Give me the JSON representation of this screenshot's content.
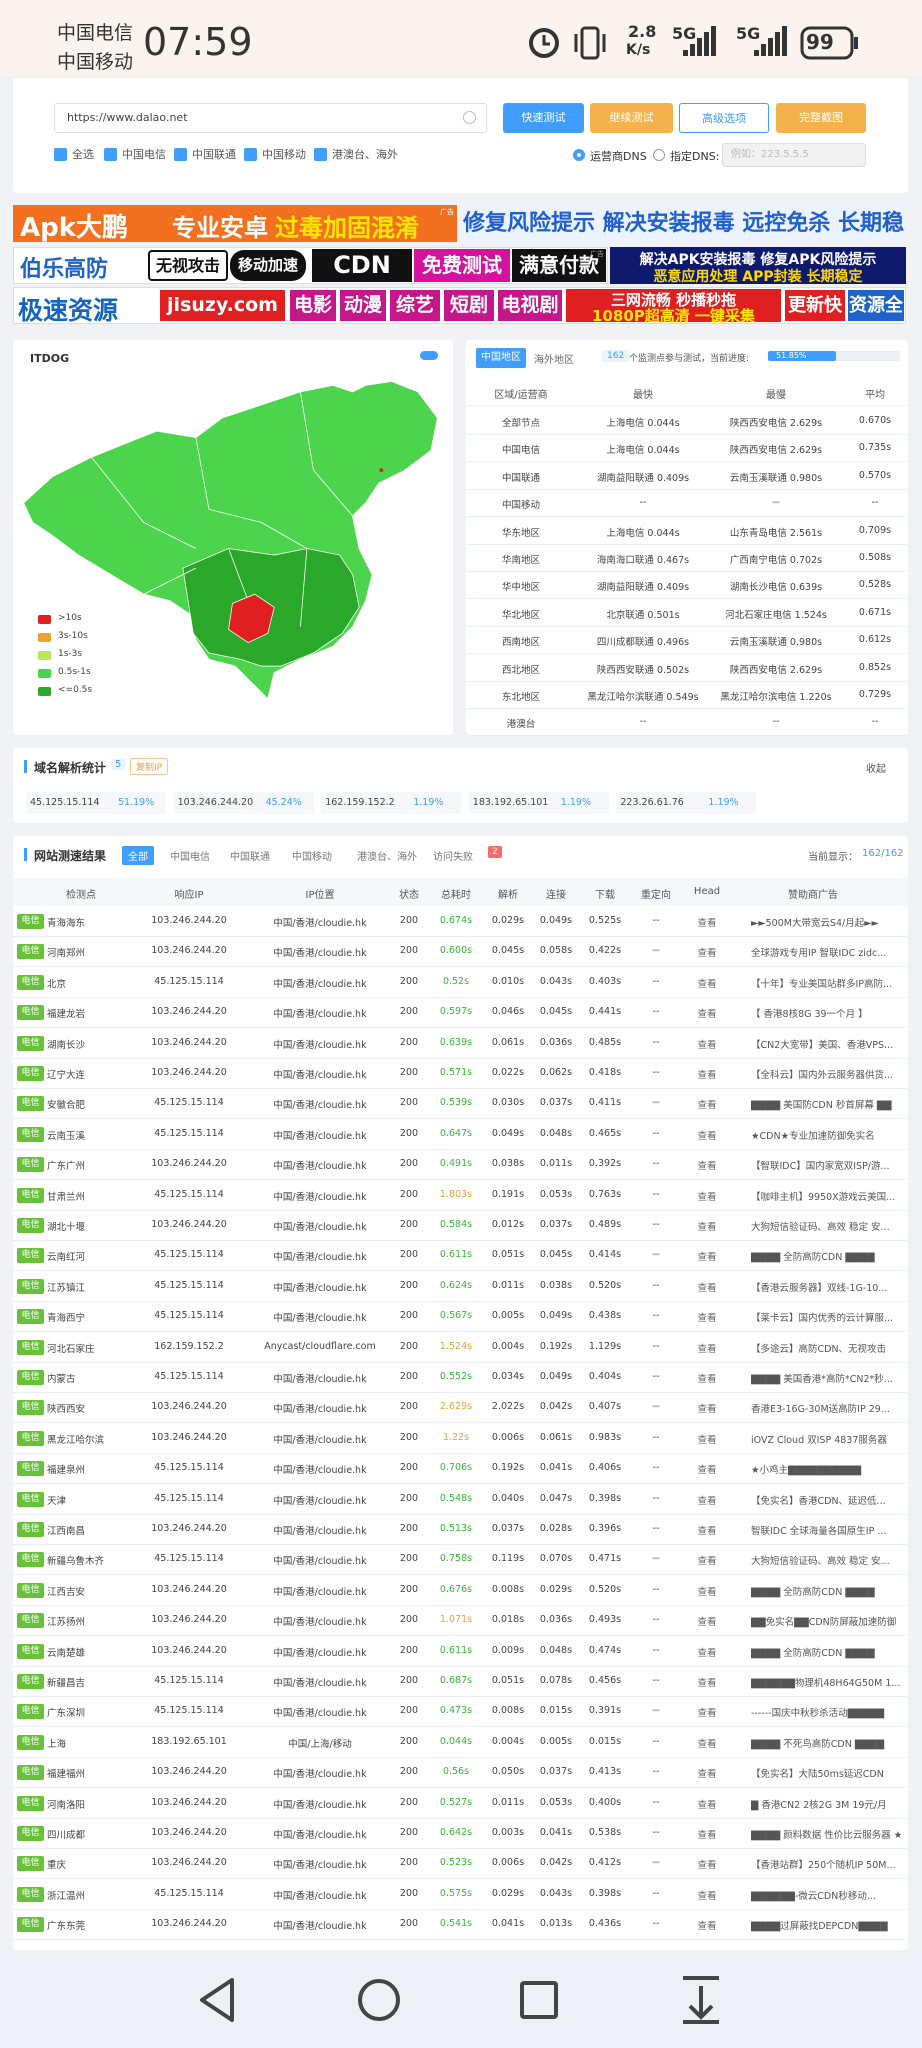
{
  "status_bar": {
    "carrier1": "中国电信",
    "carrier2": "中国移动",
    "time": "07:59",
    "speed": "2.8",
    "speed_unit": "K/s",
    "net1": "5G",
    "net2": "5G",
    "battery": "99"
  },
  "toolbar": {
    "url": "https://www.dalao.net",
    "buttons": [
      "快速测试",
      "继续测试",
      "高级选项",
      "完整截图"
    ],
    "checkboxes": [
      "全选",
      "中国电信",
      "中国联通",
      "中国移动",
      "港澳台、海外"
    ],
    "dns_options": [
      "运营商DNS",
      "指定DNS:"
    ],
    "dns_placeholder": "例如：223.5.5.5"
  },
  "ads": {
    "ad_mark": "广告",
    "r1": [
      "Apk大鹏",
      "专业安卓",
      "过毒加固混淆",
      "修复风险提示 解决安装报毒 远控免杀 长期稳定"
    ],
    "r2": [
      "伯乐高防",
      "无视攻击",
      "移动加速",
      "CDN",
      "免费测试",
      "满意付款",
      "解决APK安装报毒 修复APK风险提示",
      "恶意应用处理 APP封装 长期稳定"
    ],
    "r3": [
      "极速资源",
      "jisuzy.com",
      "电影",
      "动漫",
      "综艺",
      "短剧",
      "电视剧",
      "三网流畅 秒播秒拖",
      "1080P超高清 一键采集",
      "更新快",
      "资源全"
    ]
  },
  "map": {
    "logo": "ITDOG",
    "legend": [
      ">10s",
      "3s-10s",
      "1s-3s",
      "0.5s-1s",
      "<=0.5s"
    ]
  },
  "region_stats": {
    "tabs": [
      "中国地区",
      "海外地区"
    ],
    "monitor_count": "162",
    "progress_text": "个监测点参与测试，当前进度:",
    "progress": {
      "value": 51.85,
      "label": "51.85%"
    },
    "headers": [
      "区域/运营商",
      "最快",
      "最慢",
      "平均"
    ],
    "rows": [
      [
        "全部节点",
        "上海电信 0.044s",
        "陕西西安电信 2.629s",
        "0.670s"
      ],
      [
        "中国电信",
        "上海电信 0.044s",
        "陕西西安电信 2.629s",
        "0.735s"
      ],
      [
        "中国联通",
        "湖南益阳联通 0.409s",
        "云南玉溪联通 0.980s",
        "0.570s"
      ],
      [
        "中国移动",
        "--",
        "--",
        "--"
      ],
      [
        "华东地区",
        "上海电信 0.044s",
        "山东青岛电信 2.561s",
        "0.709s"
      ],
      [
        "华南地区",
        "海南海口联通 0.467s",
        "广西南宁电信 0.702s",
        "0.508s"
      ],
      [
        "华中地区",
        "湖南益阳联通 0.409s",
        "湖南长沙电信 0.639s",
        "0.528s"
      ],
      [
        "华北地区",
        "北京联通 0.501s",
        "河北石家庄电信 1.524s",
        "0.671s"
      ],
      [
        "西南地区",
        "四川成都联通 0.496s",
        "云南玉溪联通 0.980s",
        "0.612s"
      ],
      [
        "西北地区",
        "陕西西安联通 0.502s",
        "陕西西安电信 2.629s",
        "0.852s"
      ],
      [
        "东北地区",
        "黑龙江哈尔滨联通 0.549s",
        "黑龙江哈尔滨电信 1.220s",
        "0.729s"
      ],
      [
        "港澳台",
        "--",
        "--",
        "--"
      ]
    ]
  },
  "domain_stats": {
    "title": "域名解析统计",
    "count": "5",
    "copy": "复制IP",
    "collapse": "收起",
    "items": [
      [
        "45.125.15.114",
        "51.19%"
      ],
      [
        "103.246.244.20",
        "45.24%"
      ],
      [
        "162.159.152.2",
        "1.19%"
      ],
      [
        "183.192.65.101",
        "1.19%"
      ],
      [
        "223.26.61.76",
        "1.19%"
      ]
    ]
  },
  "results": {
    "title": "网站测速结果",
    "tabs": [
      "全部",
      "中国电信",
      "中国联通",
      "中国移动",
      "港澳台、海外",
      "访问失败"
    ],
    "fail_count": "2",
    "display_label": "当前显示：",
    "display_value": "162/162",
    "headers": [
      "检测点",
      "响应IP",
      "IP位置",
      "状态",
      "总耗时",
      "解析",
      "连接",
      "下载",
      "重定向",
      "Head",
      "赞助商广告"
    ],
    "rows": [
      [
        "电信",
        "青海海东",
        "103.246.244.20",
        "中国/香港/cloudie.hk",
        "200",
        "0.674s",
        "0.029s",
        "0.049s",
        "0.525s",
        "--",
        "查看",
        "►►500M大带宽云S4/月起►►"
      ],
      [
        "电信",
        "河南郑州",
        "103.246.244.20",
        "中国/香港/cloudie.hk",
        "200",
        "0.600s",
        "0.045s",
        "0.058s",
        "0.422s",
        "--",
        "查看",
        "全球游戏专用IP 智联IDC zidc..."
      ],
      [
        "电信",
        "北京",
        "45.125.15.114",
        "中国/香港/cloudie.hk",
        "200",
        "0.52s",
        "0.010s",
        "0.043s",
        "0.403s",
        "--",
        "查看",
        "【十年】专业美国站群多IP高防..."
      ],
      [
        "电信",
        "福建龙岩",
        "103.246.244.20",
        "中国/香港/cloudie.hk",
        "200",
        "0.597s",
        "0.046s",
        "0.045s",
        "0.441s",
        "--",
        "查看",
        "【 香港8核8G 39一个月 】"
      ],
      [
        "电信",
        "湖南长沙",
        "103.246.244.20",
        "中国/香港/cloudie.hk",
        "200",
        "0.639s",
        "0.061s",
        "0.036s",
        "0.485s",
        "--",
        "查看",
        "【CN2大宽带】美国、香港VPS..."
      ],
      [
        "电信",
        "辽宁大连",
        "103.246.244.20",
        "中国/香港/cloudie.hk",
        "200",
        "0.571s",
        "0.022s",
        "0.062s",
        "0.418s",
        "--",
        "查看",
        "【全科云】国内外云服务器供货..."
      ],
      [
        "电信",
        "安徽合肥",
        "45.125.15.114",
        "中国/香港/cloudie.hk",
        "200",
        "0.539s",
        "0.030s",
        "0.037s",
        "0.411s",
        "--",
        "查看",
        "▇▇▇▇ 美国防CDN 秒首屏幕 ▇▇"
      ],
      [
        "电信",
        "云南玉溪",
        "45.125.15.114",
        "中国/香港/cloudie.hk",
        "200",
        "0.647s",
        "0.049s",
        "0.048s",
        "0.465s",
        "--",
        "查看",
        "★CDN★专业加速防御免实名"
      ],
      [
        "电信",
        "广东广州",
        "103.246.244.20",
        "中国/香港/cloudie.hk",
        "200",
        "0.491s",
        "0.038s",
        "0.011s",
        "0.392s",
        "--",
        "查看",
        "【智联IDC】国内家宽双ISP/游..."
      ],
      [
        "电信",
        "甘肃兰州",
        "45.125.15.114",
        "中国/香港/cloudie.hk",
        "200",
        "1.803s",
        "0.191s",
        "0.053s",
        "0.763s",
        "--",
        "查看",
        "【咖啡主机】9950X游戏云美国..."
      ],
      [
        "电信",
        "湖北十堰",
        "103.246.244.20",
        "中国/香港/cloudie.hk",
        "200",
        "0.584s",
        "0.012s",
        "0.037s",
        "0.489s",
        "--",
        "查看",
        "大狗短信验证码、高效 稳定 安..."
      ],
      [
        "电信",
        "云南红河",
        "45.125.15.114",
        "中国/香港/cloudie.hk",
        "200",
        "0.611s",
        "0.051s",
        "0.045s",
        "0.414s",
        "--",
        "查看",
        "▇▇▇▇ 全防高防CDN ▇▇▇▇"
      ],
      [
        "电信",
        "江苏镇江",
        "45.125.15.114",
        "中国/香港/cloudie.hk",
        "200",
        "0.624s",
        "0.011s",
        "0.038s",
        "0.520s",
        "--",
        "查看",
        "【香港云服务器】双线-1G-10..."
      ],
      [
        "电信",
        "青海西宁",
        "45.125.15.114",
        "中国/香港/cloudie.hk",
        "200",
        "0.567s",
        "0.005s",
        "0.049s",
        "0.438s",
        "--",
        "查看",
        "【莱卡云】国内优秀的云计算服..."
      ],
      [
        "电信",
        "河北石家庄",
        "162.159.152.2",
        "Anycast/cloudflare.com",
        "200",
        "1.524s",
        "0.004s",
        "0.192s",
        "1.129s",
        "--",
        "查看",
        "【多途云】高防CDN、无视攻击"
      ],
      [
        "电信",
        "内蒙古",
        "45.125.15.114",
        "中国/香港/cloudie.hk",
        "200",
        "0.552s",
        "0.034s",
        "0.049s",
        "0.404s",
        "--",
        "查看",
        "▇▇▇▇ 美国香港*高防*CN2*秒..."
      ],
      [
        "电信",
        "陕西西安",
        "103.246.244.20",
        "中国/香港/cloudie.hk",
        "200",
        "2.629s",
        "2.022s",
        "0.042s",
        "0.407s",
        "--",
        "查看",
        "香港E3-16G-30M送高防IP 29..."
      ],
      [
        "电信",
        "黑龙江哈尔滨",
        "103.246.244.20",
        "中国/香港/cloudie.hk",
        "200",
        "1.22s",
        "0.006s",
        "0.061s",
        "0.983s",
        "--",
        "查看",
        "iOVZ Cloud 双ISP 4837服务器"
      ],
      [
        "电信",
        "福建泉州",
        "45.125.15.114",
        "中国/香港/cloudie.hk",
        "200",
        "0.706s",
        "0.192s",
        "0.041s",
        "0.406s",
        "--",
        "查看",
        "★小鸡主▇▇▇▇▇▇▇▇▇▇"
      ],
      [
        "电信",
        "天津",
        "45.125.15.114",
        "中国/香港/cloudie.hk",
        "200",
        "0.548s",
        "0.040s",
        "0.047s",
        "0.398s",
        "--",
        "查看",
        "【免实名】香港CDN、延迟低..."
      ],
      [
        "电信",
        "江西南昌",
        "103.246.244.20",
        "中国/香港/cloudie.hk",
        "200",
        "0.513s",
        "0.037s",
        "0.028s",
        "0.396s",
        "--",
        "查看",
        "智联IDC 全球海量各国原生IP ..."
      ],
      [
        "电信",
        "新疆乌鲁木齐",
        "45.125.15.114",
        "中国/香港/cloudie.hk",
        "200",
        "0.758s",
        "0.119s",
        "0.070s",
        "0.471s",
        "--",
        "查看",
        "大狗短信验证码、高效 稳定 安..."
      ],
      [
        "电信",
        "江西吉安",
        "103.246.244.20",
        "中国/香港/cloudie.hk",
        "200",
        "0.676s",
        "0.008s",
        "0.029s",
        "0.520s",
        "--",
        "查看",
        "▇▇▇▇ 全防高防CDN ▇▇▇▇"
      ],
      [
        "电信",
        "江苏扬州",
        "103.246.244.20",
        "中国/香港/cloudie.hk",
        "200",
        "1.071s",
        "0.018s",
        "0.036s",
        "0.493s",
        "--",
        "查看",
        "▇▇免实名▇▇CDN防屏蔽加速防御"
      ],
      [
        "电信",
        "云南楚雄",
        "103.246.244.20",
        "中国/香港/cloudie.hk",
        "200",
        "0.611s",
        "0.009s",
        "0.048s",
        "0.474s",
        "--",
        "查看",
        "▇▇▇▇ 全防高防CDN ▇▇▇▇"
      ],
      [
        "电信",
        "新疆昌吉",
        "45.125.15.114",
        "中国/香港/cloudie.hk",
        "200",
        "0.687s",
        "0.051s",
        "0.078s",
        "0.456s",
        "--",
        "查看",
        "▇▇▇▇▇▇物理机48H64G50M 1..."
      ],
      [
        "电信",
        "广东深圳",
        "45.125.15.114",
        "中国/香港/cloudie.hk",
        "200",
        "0.473s",
        "0.008s",
        "0.015s",
        "0.391s",
        "--",
        "查看",
        "------国庆中秋秒杀活动▇▇▇▇▇"
      ],
      [
        "电信",
        "上海",
        "183.192.65.101",
        "中国/上海/移动",
        "200",
        "0.044s",
        "0.004s",
        "0.005s",
        "0.015s",
        "--",
        "查看",
        "▇▇▇▇ 不死鸟高防CDN ▇▇▇▇"
      ],
      [
        "电信",
        "福建福州",
        "103.246.244.20",
        "中国/香港/cloudie.hk",
        "200",
        "0.56s",
        "0.050s",
        "0.037s",
        "0.413s",
        "--",
        "查看",
        "【免实名】大陆50ms延迟CDN"
      ],
      [
        "电信",
        "河南洛阳",
        "103.246.244.20",
        "中国/香港/cloudie.hk",
        "200",
        "0.527s",
        "0.011s",
        "0.053s",
        "0.400s",
        "--",
        "查看",
        "▇ 香港CN2 2核2G 3M 19元/月"
      ],
      [
        "电信",
        "四川成都",
        "103.246.244.20",
        "中国/香港/cloudie.hk",
        "200",
        "0.642s",
        "0.003s",
        "0.041s",
        "0.538s",
        "--",
        "查看",
        "▇▇▇▇ 颜料数据 性价比云服务器 ★"
      ],
      [
        "电信",
        "重庆",
        "103.246.244.20",
        "中国/香港/cloudie.hk",
        "200",
        "0.523s",
        "0.006s",
        "0.042s",
        "0.412s",
        "--",
        "查看",
        "【香港站群】250个随机IP 50M..."
      ],
      [
        "电信",
        "浙江温州",
        "45.125.15.114",
        "中国/香港/cloudie.hk",
        "200",
        "0.575s",
        "0.029s",
        "0.043s",
        "0.398s",
        "--",
        "查看",
        "▇▇▇▇▇▇-微云CDN秒移动..."
      ],
      [
        "电信",
        "广东东莞",
        "103.246.244.20",
        "中国/香港/cloudie.hk",
        "200",
        "0.541s",
        "0.041s",
        "0.013s",
        "0.436s",
        "--",
        "查看",
        "▇▇▇▇过屏蔽找DEPCDN▇▇▇▇"
      ]
    ]
  }
}
